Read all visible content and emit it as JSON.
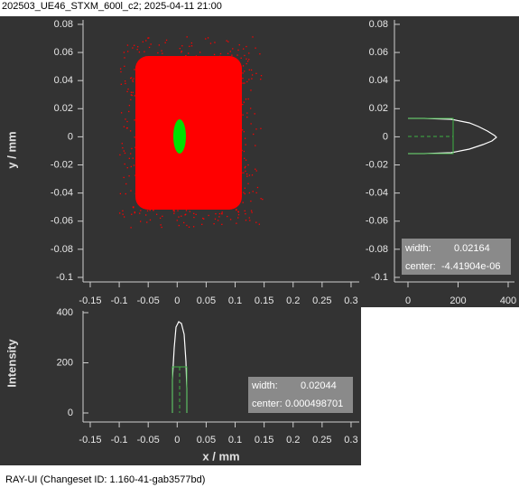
{
  "window": {
    "title": "202503_UE46_STXM_600l_c2; 2025-04-11 21:00",
    "footer": "RAY-UI (Changeset ID: 1.160-41-gab3577bd)"
  },
  "scatter": {
    "ylabel": "y / mm",
    "xticks": [
      -0.15,
      -0.1,
      -0.05,
      0,
      0.05,
      0.1,
      0.15,
      0.2,
      0.25,
      0.3
    ],
    "yticks": [
      0.08,
      0.06,
      0.04,
      0.02,
      0,
      -0.02,
      -0.04,
      -0.06,
      -0.08,
      -0.1
    ]
  },
  "y_histogram": {
    "xticks": [
      0,
      200,
      400
    ],
    "yticks": [
      0.08,
      0.06,
      0.04,
      0.02,
      0,
      -0.02,
      -0.04,
      -0.06,
      -0.08,
      -0.1
    ],
    "stats": {
      "width_label": "width:",
      "width": 0.02164,
      "center_label": "center:",
      "center": {
        "value": -4.41904e-06,
        "label": "-4.41904e-06"
      }
    }
  },
  "x_histogram": {
    "xlabel": "x / mm",
    "ylabel": "Intensity",
    "xticks": [
      -0.15,
      -0.1,
      -0.05,
      0,
      0.05,
      0.1,
      0.15,
      0.2,
      0.25,
      0.3
    ],
    "yticks": [
      400,
      200,
      0
    ],
    "stats": {
      "width_label": "width:",
      "width": 0.02044,
      "center_label": "center:",
      "center": 0.000498701
    }
  }
}
